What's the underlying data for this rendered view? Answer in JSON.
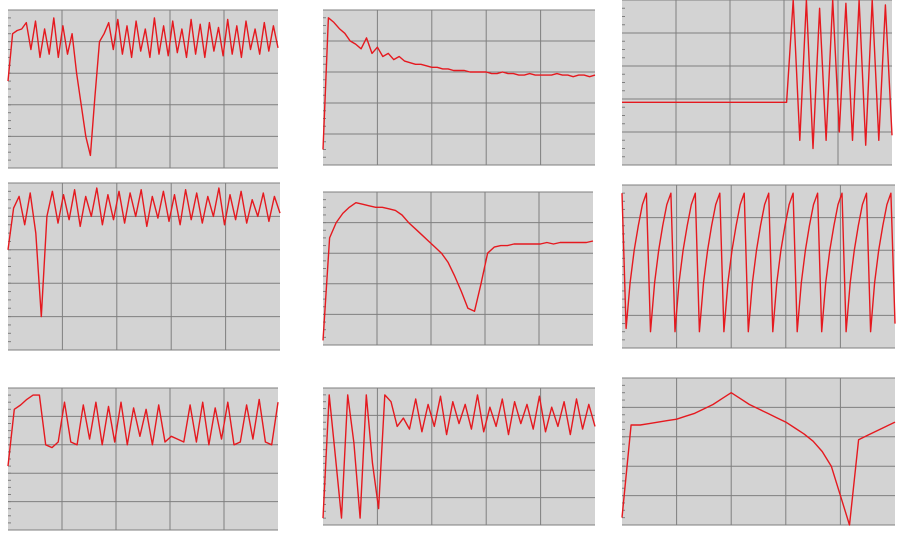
{
  "chart_data": [
    {
      "type": "line",
      "color": "#e5191f",
      "grid": true,
      "ylim": [
        0,
        100
      ],
      "yticks": [
        0,
        20,
        40,
        60,
        80,
        100
      ],
      "values": [
        55,
        85,
        87,
        88,
        92,
        75,
        93,
        70,
        88,
        72,
        95,
        70,
        90,
        72,
        85,
        60,
        40,
        20,
        8,
        45,
        80,
        85,
        92,
        75,
        94,
        72,
        90,
        70,
        93,
        74,
        88,
        70,
        95,
        72,
        90,
        71,
        93,
        73,
        88,
        70,
        94,
        72,
        91,
        70,
        92,
        74,
        89,
        71,
        94,
        72,
        90,
        70,
        93,
        75,
        88,
        72,
        92,
        74,
        90,
        76
      ]
    },
    {
      "type": "line",
      "color": "#e5191f",
      "grid": true,
      "ylim": [
        0,
        100
      ],
      "yticks": [
        0,
        20,
        40,
        60,
        80,
        100
      ],
      "values": [
        10,
        95,
        92,
        88,
        85,
        80,
        78,
        75,
        82,
        72,
        76,
        70,
        72,
        68,
        70,
        67,
        66,
        65,
        65,
        64,
        63,
        63,
        62,
        62,
        61,
        61,
        61,
        60,
        60,
        60,
        60,
        59,
        59,
        60,
        59,
        59,
        58,
        58,
        59,
        58,
        58,
        58,
        58,
        59,
        58,
        58,
        57,
        58,
        58,
        57,
        58
      ]
    },
    {
      "type": "line",
      "color": "#e5191f",
      "grid": true,
      "ylim": [
        0,
        100
      ],
      "yticks": [
        0,
        20,
        40,
        60,
        80,
        100
      ],
      "values": [
        38,
        38,
        38,
        38,
        38,
        38,
        38,
        38,
        38,
        38,
        38,
        38,
        38,
        38,
        38,
        38,
        38,
        38,
        38,
        38,
        38,
        38,
        38,
        38,
        38,
        38,
        100,
        15,
        100,
        10,
        95,
        15,
        100,
        20,
        98,
        15,
        100,
        12,
        100,
        15,
        97,
        18
      ]
    },
    {
      "type": "line",
      "color": "#e5191f",
      "grid": true,
      "ylim": [
        0,
        100
      ],
      "yticks": [
        0,
        20,
        40,
        60,
        80,
        100
      ],
      "values": [
        60,
        85,
        92,
        75,
        94,
        70,
        20,
        80,
        95,
        76,
        93,
        78,
        96,
        74,
        92,
        80,
        97,
        75,
        93,
        78,
        95,
        76,
        94,
        80,
        96,
        74,
        92,
        79,
        95,
        77,
        93,
        75,
        96,
        78,
        94,
        76,
        92,
        80,
        97,
        75,
        93,
        78,
        95,
        76,
        90,
        80,
        94,
        77,
        92,
        82
      ]
    },
    {
      "type": "line",
      "color": "#e5191f",
      "grid": true,
      "ylim": [
        0,
        100
      ],
      "yticks": [
        0,
        20,
        40,
        60,
        80,
        100
      ],
      "values": [
        3,
        70,
        80,
        86,
        90,
        93,
        92,
        91,
        90,
        90,
        89,
        88,
        85,
        80,
        76,
        72,
        68,
        64,
        60,
        54,
        45,
        35,
        24,
        22,
        40,
        60,
        64,
        65,
        65,
        66,
        66,
        66,
        66,
        66,
        67,
        66,
        67,
        67,
        67,
        67,
        67,
        68
      ]
    },
    {
      "type": "line",
      "color": "#e5191f",
      "grid": true,
      "ylim": [
        0,
        100
      ],
      "yticks": [
        0,
        20,
        40,
        60,
        80,
        100
      ],
      "values": [
        95,
        12,
        40,
        60,
        75,
        88,
        95,
        10,
        40,
        60,
        75,
        88,
        95,
        10,
        40,
        60,
        75,
        88,
        95,
        10,
        40,
        60,
        75,
        88,
        95,
        10,
        40,
        60,
        75,
        88,
        95,
        10,
        40,
        60,
        75,
        88,
        95,
        10,
        40,
        60,
        75,
        88,
        95,
        10,
        40,
        60,
        75,
        88,
        95,
        10,
        40,
        60,
        75,
        88,
        95,
        10,
        40,
        60,
        75,
        88,
        95,
        10,
        40,
        60,
        75,
        88,
        95,
        15
      ]
    },
    {
      "type": "line",
      "color": "#e5191f",
      "grid": true,
      "ylim": [
        0,
        100
      ],
      "yticks": [
        0,
        20,
        40,
        60,
        80,
        100
      ],
      "values": [
        45,
        85,
        88,
        92,
        95,
        95,
        60,
        58,
        62,
        90,
        62,
        60,
        88,
        64,
        90,
        60,
        87,
        62,
        90,
        60,
        86,
        66,
        85,
        60,
        88,
        62,
        66,
        64,
        62,
        88,
        62,
        90,
        60,
        86,
        64,
        90,
        60,
        62,
        88,
        64,
        92,
        62,
        60,
        90
      ]
    },
    {
      "type": "line",
      "color": "#e5191f",
      "grid": true,
      "ylim": [
        0,
        100
      ],
      "yticks": [
        0,
        20,
        40,
        60,
        80,
        100
      ],
      "values": [
        5,
        95,
        50,
        5,
        95,
        60,
        5,
        95,
        45,
        12,
        95,
        90,
        72,
        78,
        70,
        92,
        68,
        88,
        72,
        94,
        66,
        90,
        74,
        88,
        70,
        95,
        68,
        86,
        72,
        92,
        66,
        90,
        74,
        88,
        70,
        94,
        68,
        86,
        72,
        90,
        66,
        92,
        70,
        88,
        72
      ]
    },
    {
      "type": "line",
      "color": "#e5191f",
      "grid": true,
      "ylim": [
        0,
        100
      ],
      "yticks": [
        0,
        20,
        40,
        60,
        80,
        100
      ],
      "values": [
        5,
        68,
        68,
        69,
        70,
        71,
        72,
        74,
        76,
        79,
        82,
        86,
        90,
        86,
        82,
        79,
        76,
        73,
        70,
        66,
        62,
        57,
        50,
        40,
        20,
        0,
        58,
        61,
        64,
        67,
        70
      ]
    }
  ]
}
